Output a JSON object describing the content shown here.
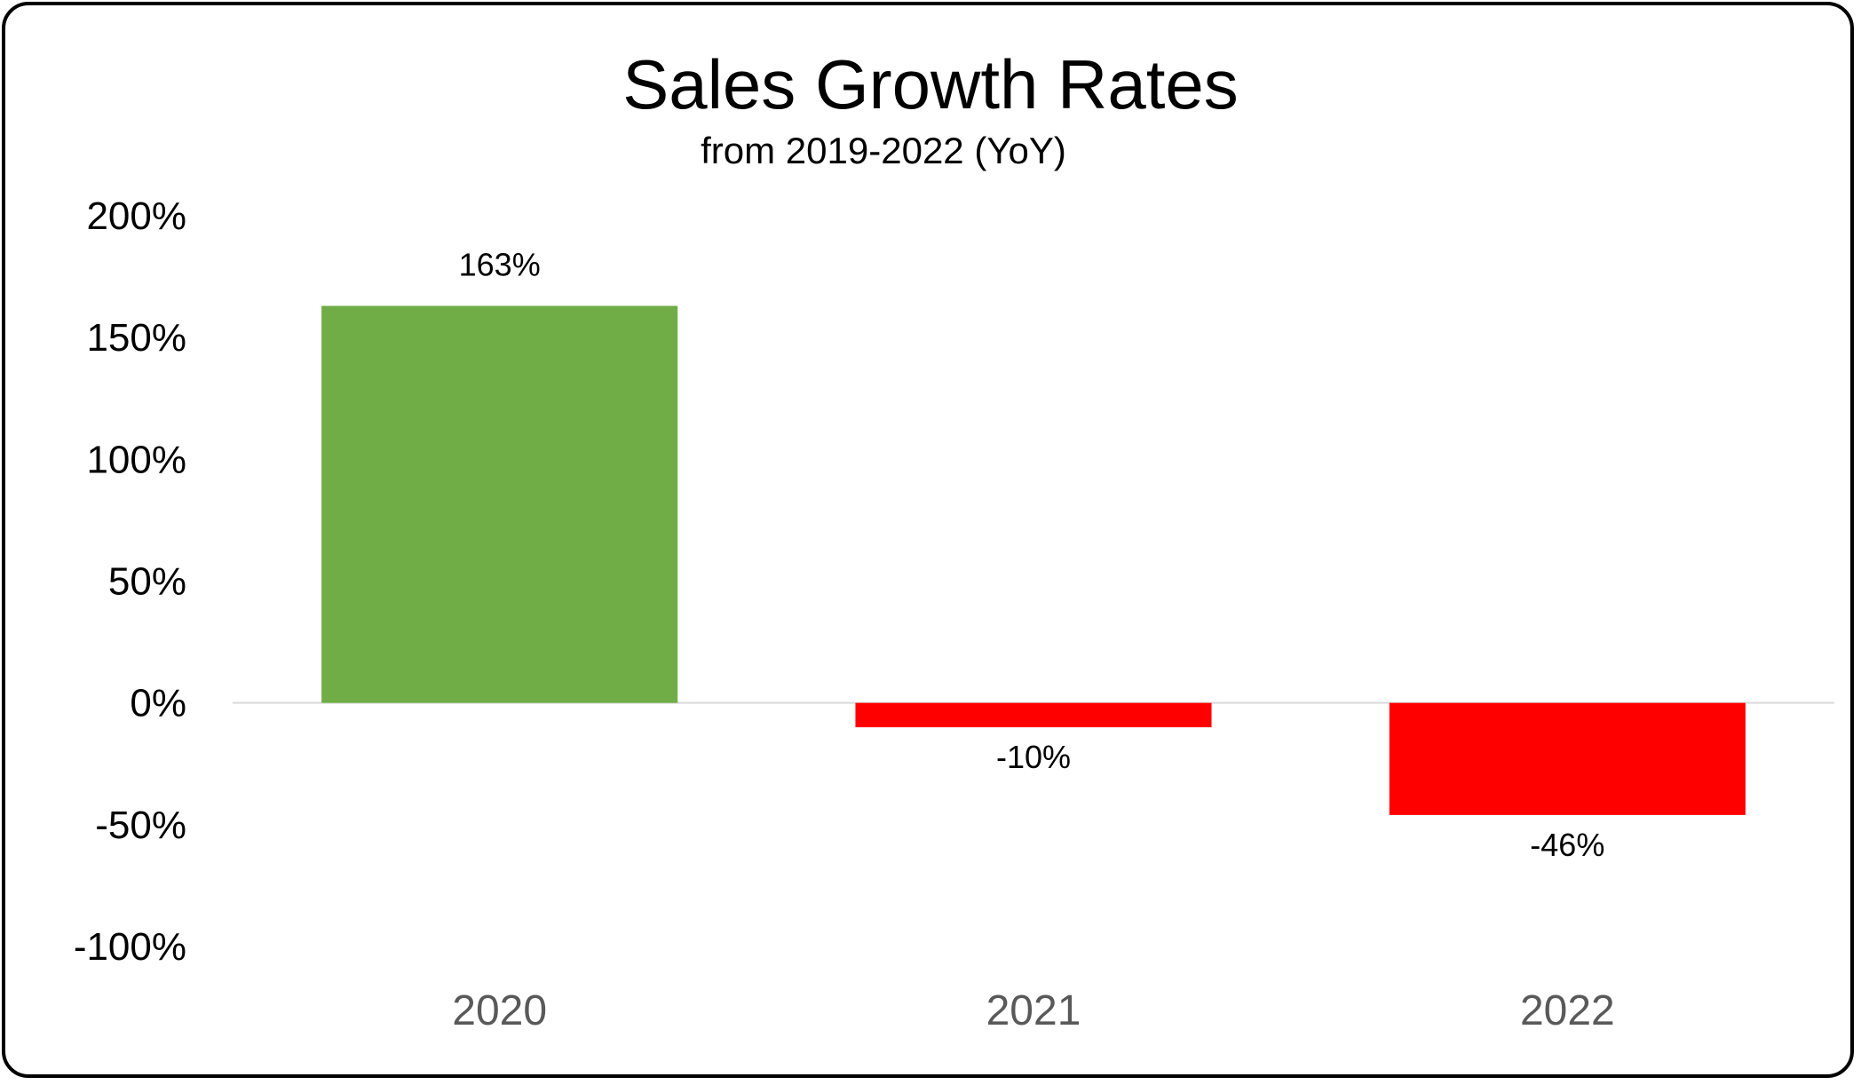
{
  "chart_data": {
    "type": "bar",
    "title": "Sales Growth Rates",
    "subtitle": "from 2019-2022 (YoY)",
    "categories": [
      "2020",
      "2021",
      "2022"
    ],
    "values": [
      163,
      -10,
      -46
    ],
    "data_labels": [
      "163%",
      "-10%",
      "-46%"
    ],
    "bar_colors": [
      "#70AD47",
      "#FF0000",
      "#FF0000"
    ],
    "ylim": [
      -100,
      200
    ],
    "yticks": [
      200,
      150,
      100,
      50,
      0,
      -50,
      -100
    ],
    "ytick_labels": [
      "200%",
      "150%",
      "100%",
      "50%",
      "0%",
      "-50%",
      "-100%"
    ],
    "grid": false,
    "legend": "none",
    "xlabel": "",
    "ylabel": ""
  }
}
